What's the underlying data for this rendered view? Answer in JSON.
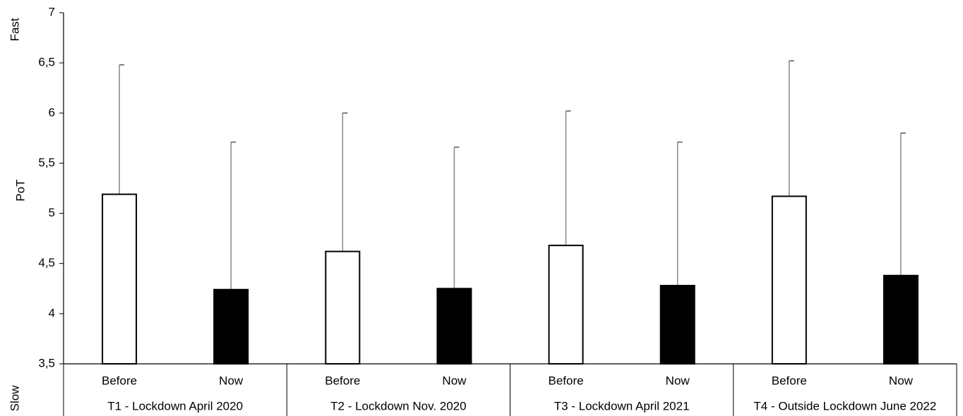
{
  "chart_data": {
    "type": "bar",
    "y_label": "PoT",
    "y_top_label": "Fast",
    "y_bottom_label": "Slow",
    "categories": [
      "T1 - Lockdown April 2020",
      "T2 - Lockdown Nov. 2020",
      "T3 - Lockdown April 2021",
      "T4 - Outside Lockdown June 2022"
    ],
    "series": [
      {
        "name": "Before",
        "color": "#ffffff",
        "values": [
          5.19,
          4.62,
          4.68,
          5.17
        ],
        "errors": [
          1.29,
          1.38,
          1.34,
          1.35
        ]
      },
      {
        "name": "Now",
        "color": "#000000",
        "values": [
          4.24,
          4.25,
          4.28,
          4.38
        ],
        "errors": [
          1.47,
          1.41,
          1.43,
          1.42
        ]
      }
    ],
    "ylim": [
      3.5,
      7
    ],
    "yticks": [
      {
        "value": 3.5,
        "label": "3,5"
      },
      4,
      {
        "value": 4.5,
        "label": "4,5"
      },
      5,
      {
        "value": 5.5,
        "label": "5,5"
      },
      6,
      {
        "value": 6.5,
        "label": "6,5"
      },
      7
    ]
  }
}
